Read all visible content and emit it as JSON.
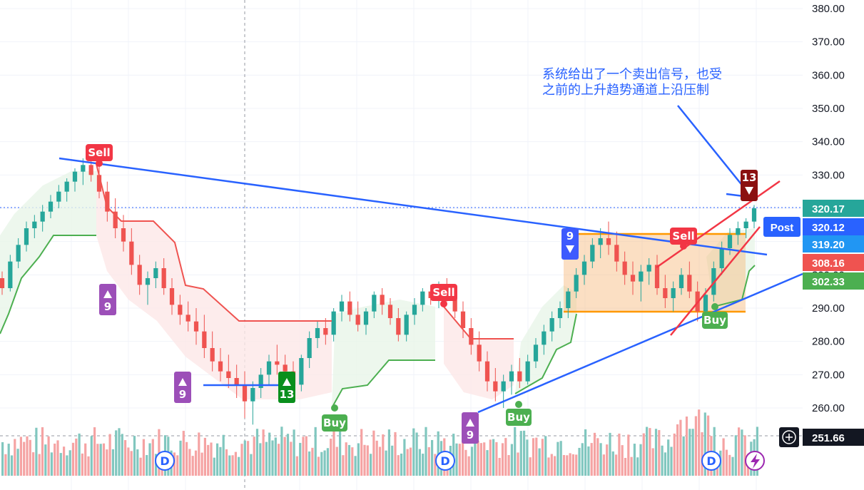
{
  "chart_data": {
    "type": "candlestick",
    "symbol": "",
    "y_axis": {
      "ticks": [
        "380.00",
        "370.00",
        "360.00",
        "350.00",
        "340.00",
        "330.00",
        "320.00",
        "310.00",
        "300.00",
        "290.00",
        "280.00",
        "270.00",
        "260.00"
      ],
      "range": [
        251.66,
        383
      ]
    },
    "price_tags": [
      {
        "label": "",
        "value": "320.17",
        "color": "#26a69a"
      },
      {
        "label": "Post",
        "value": "320.12",
        "color": "#2962ff"
      },
      {
        "label": "",
        "value": "319.20",
        "color": "#2196f3"
      },
      {
        "label": "",
        "value": "308.16",
        "color": "#ef5350"
      },
      {
        "label": "",
        "value": "302.33",
        "color": "#4caf50"
      },
      {
        "label": "",
        "value": "251.66",
        "color": "#131722"
      }
    ],
    "annotation": [
      "系统给出了一个卖出信号，也受",
      "之前的上升趋势通道上沿压制"
    ],
    "signals": [
      {
        "type": "sell",
        "text": "Sell"
      },
      {
        "type": "sell",
        "text": "Sell"
      },
      {
        "type": "sell",
        "text": "Sell"
      },
      {
        "type": "buy",
        "text": "Buy"
      },
      {
        "type": "buy",
        "text": "Buy"
      },
      {
        "type": "buy",
        "text": "Buy"
      }
    ],
    "td_counts": [
      {
        "value": "9",
        "direction": "up",
        "color": "#9c4fb8"
      },
      {
        "value": "9",
        "direction": "up",
        "color": "#9c4fb8"
      },
      {
        "value": "13",
        "direction": "up",
        "color": "#0a8f1d"
      },
      {
        "value": "9",
        "direction": "up",
        "color": "#9c4fb8"
      },
      {
        "value": "9",
        "direction": "down",
        "color": "#3d5afe"
      },
      {
        "value": "13",
        "direction": "down",
        "color": "#8b1010"
      }
    ],
    "dividends": [
      "D",
      "D",
      "D"
    ],
    "candles": [
      [
        299,
        301,
        294,
        296
      ],
      [
        296,
        306,
        295,
        304
      ],
      [
        304,
        311,
        302,
        309
      ],
      [
        309,
        316,
        307,
        314
      ],
      [
        314,
        318,
        311,
        316
      ],
      [
        316,
        321,
        313,
        319
      ],
      [
        319,
        324,
        317,
        322
      ],
      [
        322,
        327,
        320,
        325
      ],
      [
        325,
        329,
        322,
        328
      ],
      [
        328,
        332,
        325,
        331
      ],
      [
        331,
        335,
        327,
        333
      ],
      [
        333,
        336,
        328,
        330
      ],
      [
        330,
        333,
        323,
        325
      ],
      [
        325,
        328,
        316,
        319
      ],
      [
        319,
        323,
        311,
        314
      ],
      [
        314,
        318,
        307,
        310
      ],
      [
        310,
        314,
        300,
        303
      ],
      [
        303,
        306,
        294,
        297
      ],
      [
        297,
        301,
        291,
        299
      ],
      [
        299,
        304,
        296,
        302
      ],
      [
        302,
        305,
        294,
        296
      ],
      [
        296,
        299,
        288,
        291
      ],
      [
        291,
        294,
        285,
        288
      ],
      [
        288,
        292,
        283,
        286
      ],
      [
        286,
        290,
        279,
        283
      ],
      [
        283,
        288,
        275,
        278
      ],
      [
        278,
        283,
        271,
        274
      ],
      [
        274,
        278,
        268,
        271
      ],
      [
        271,
        276,
        266,
        269
      ],
      [
        269,
        273,
        263,
        267
      ],
      [
        267,
        271,
        257,
        262
      ],
      [
        262,
        268,
        255,
        266
      ],
      [
        266,
        272,
        263,
        270
      ],
      [
        270,
        276,
        267,
        274
      ],
      [
        274,
        279,
        270,
        273
      ],
      [
        273,
        276,
        268,
        271
      ],
      [
        271,
        274,
        264,
        267
      ],
      [
        267,
        276,
        265,
        275
      ],
      [
        275,
        283,
        272,
        281
      ],
      [
        281,
        286,
        278,
        284
      ],
      [
        284,
        287,
        279,
        282
      ],
      [
        282,
        290,
        280,
        289
      ],
      [
        289,
        294,
        286,
        292
      ],
      [
        292,
        295,
        286,
        288
      ],
      [
        288,
        292,
        283,
        285
      ],
      [
        285,
        290,
        282,
        289
      ],
      [
        289,
        295,
        287,
        294
      ],
      [
        294,
        296,
        288,
        291
      ],
      [
        291,
        293,
        285,
        287
      ],
      [
        287,
        290,
        280,
        282
      ],
      [
        282,
        289,
        280,
        288
      ],
      [
        288,
        293,
        285,
        291
      ],
      [
        291,
        296,
        289,
        295
      ],
      [
        295,
        297,
        291,
        293
      ],
      [
        293,
        298,
        290,
        296
      ],
      [
        296,
        299,
        292,
        294
      ],
      [
        294,
        297,
        287,
        289
      ],
      [
        289,
        292,
        281,
        284
      ],
      [
        284,
        287,
        276,
        279
      ],
      [
        279,
        283,
        271,
        274
      ],
      [
        274,
        277,
        265,
        268
      ],
      [
        268,
        272,
        262,
        265
      ],
      [
        265,
        270,
        260,
        268
      ],
      [
        268,
        273,
        264,
        271
      ],
      [
        271,
        275,
        266,
        268
      ],
      [
        268,
        276,
        267,
        274
      ],
      [
        274,
        281,
        272,
        279
      ],
      [
        279,
        285,
        276,
        283
      ],
      [
        283,
        289,
        280,
        287
      ],
      [
        287,
        292,
        284,
        290
      ],
      [
        290,
        296,
        287,
        295
      ],
      [
        295,
        302,
        293,
        300
      ],
      [
        300,
        306,
        297,
        304
      ],
      [
        304,
        311,
        302,
        309
      ],
      [
        309,
        314,
        305,
        311
      ],
      [
        311,
        316,
        306,
        309
      ],
      [
        309,
        313,
        301,
        304
      ],
      [
        304,
        307,
        297,
        300
      ],
      [
        300,
        304,
        294,
        298
      ],
      [
        298,
        303,
        292,
        301
      ],
      [
        301,
        305,
        297,
        303
      ],
      [
        303,
        306,
        294,
        296
      ],
      [
        296,
        300,
        290,
        293
      ],
      [
        293,
        298,
        289,
        296
      ],
      [
        296,
        302,
        294,
        300
      ],
      [
        300,
        304,
        293,
        295
      ],
      [
        295,
        298,
        286,
        289
      ],
      [
        289,
        296,
        287,
        294
      ],
      [
        294,
        304,
        292,
        302
      ],
      [
        302,
        310,
        300,
        308
      ],
      [
        308,
        314,
        306,
        312
      ],
      [
        312,
        316,
        309,
        314
      ],
      [
        314,
        317,
        311,
        316
      ],
      [
        316,
        321,
        314,
        320
      ]
    ]
  }
}
